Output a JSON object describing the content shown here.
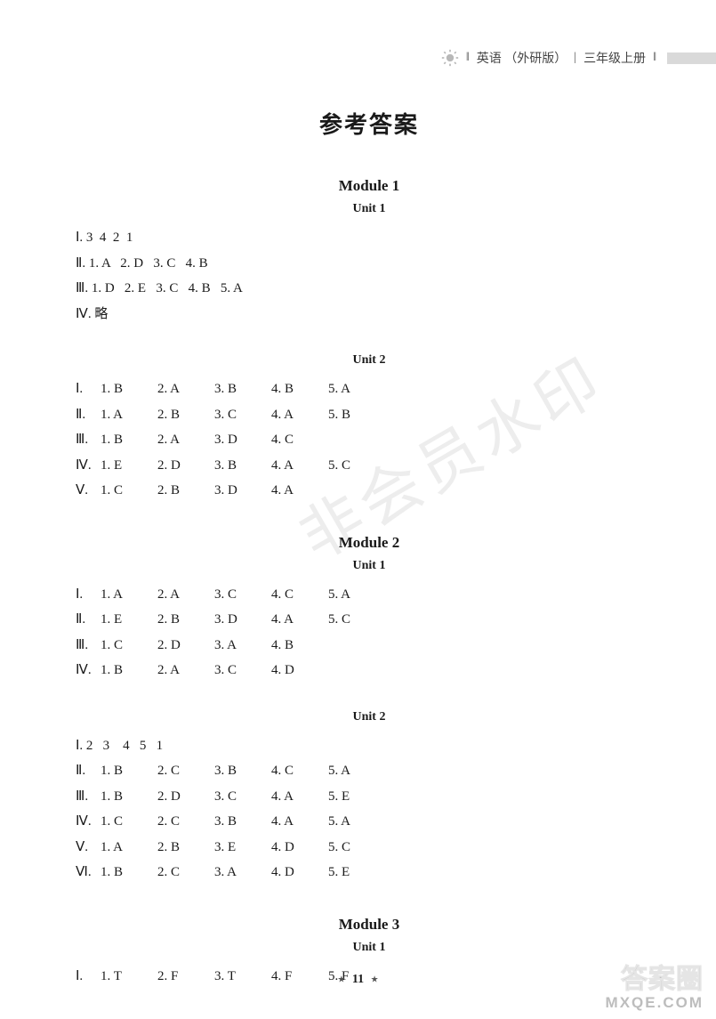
{
  "header": {
    "subject": "英语",
    "edition": "（外研版）",
    "grade": "三年级上册"
  },
  "title": "参考答案",
  "footer": {
    "page": "11"
  },
  "corner": {
    "line1": "答案圈",
    "line2": "MXQE.COM"
  },
  "watermark": "非会员水印",
  "modules": [
    {
      "title": "Module  1",
      "units": [
        {
          "title": "Unit  1",
          "style": "plain",
          "lines": [
            "Ⅰ. 3  4  2  1",
            "Ⅱ. 1. A   2. D   3. C   4. B",
            "Ⅲ. 1. D   2. E   3. C   4. B   5. A",
            "Ⅳ. 略"
          ]
        },
        {
          "title": "Unit  2",
          "style": "grid",
          "rows": [
            {
              "rn": "Ⅰ.",
              "cells": [
                "1. B",
                "2. A",
                "3. B",
                "4. B",
                "5. A"
              ]
            },
            {
              "rn": "Ⅱ.",
              "cells": [
                "1. A",
                "2. B",
                "3. C",
                "4. A",
                "5. B"
              ]
            },
            {
              "rn": "Ⅲ.",
              "cells": [
                "1. B",
                "2. A",
                "3. D",
                "4. C",
                ""
              ]
            },
            {
              "rn": "Ⅳ.",
              "cells": [
                "1. E",
                "2. D",
                "3. B",
                "4. A",
                "5. C"
              ]
            },
            {
              "rn": "Ⅴ.",
              "cells": [
                "1. C",
                "2. B",
                "3. D",
                "4. A",
                ""
              ]
            }
          ]
        }
      ]
    },
    {
      "title": "Module  2",
      "units": [
        {
          "title": "Unit  1",
          "style": "grid",
          "rows": [
            {
              "rn": "Ⅰ.",
              "cells": [
                "1. A",
                "2. A",
                "3. C",
                "4. C",
                "5. A"
              ]
            },
            {
              "rn": "Ⅱ.",
              "cells": [
                "1. E",
                "2. B",
                "3. D",
                "4. A",
                "5. C"
              ]
            },
            {
              "rn": "Ⅲ.",
              "cells": [
                "1. C",
                "2. D",
                "3. A",
                "4. B",
                ""
              ]
            },
            {
              "rn": "Ⅳ.",
              "cells": [
                "1. B",
                "2. A",
                "3. C",
                "4. D",
                ""
              ]
            }
          ]
        },
        {
          "title": "Unit  2",
          "style": "mixed",
          "first_line": "Ⅰ. 2   3    4   5   1",
          "rows": [
            {
              "rn": "Ⅱ.",
              "cells": [
                "1. B",
                "2. C",
                "3. B",
                "4. C",
                "5. A"
              ]
            },
            {
              "rn": "Ⅲ.",
              "cells": [
                "1. B",
                "2. D",
                "3. C",
                "4. A",
                "5. E"
              ]
            },
            {
              "rn": "Ⅳ.",
              "cells": [
                "1. C",
                "2. C",
                "3. B",
                "4. A",
                "5. A"
              ]
            },
            {
              "rn": "Ⅴ.",
              "cells": [
                "1. A",
                "2. B",
                "3. E",
                "4. D",
                "5. C"
              ]
            },
            {
              "rn": "Ⅵ.",
              "cells": [
                "1. B",
                "2. C",
                "3. A",
                "4. D",
                "5. E"
              ]
            }
          ]
        }
      ]
    },
    {
      "title": "Module  3",
      "units": [
        {
          "title": "Unit  1",
          "style": "grid",
          "rows": [
            {
              "rn": "Ⅰ.",
              "cells": [
                "1. T",
                "2. F",
                "3. T",
                "4. F",
                "5. F"
              ]
            }
          ]
        }
      ]
    }
  ]
}
